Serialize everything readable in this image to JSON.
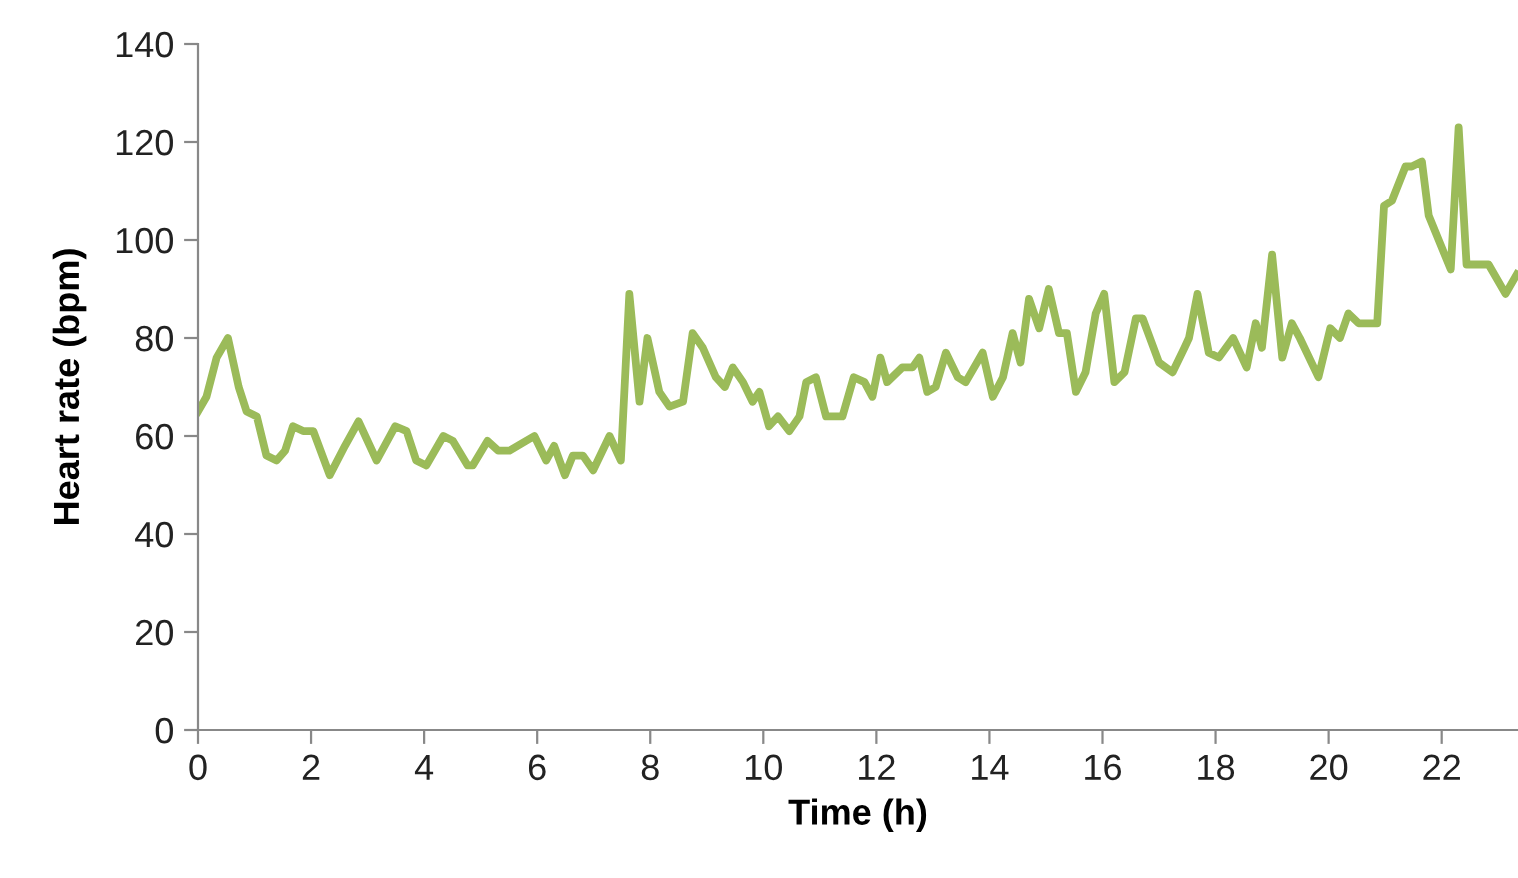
{
  "chart_data": {
    "type": "line",
    "xlabel": "Time (h)",
    "ylabel": "Heart rate (bpm)",
    "xlim": [
      0,
      23.35
    ],
    "xticks": [
      0,
      2,
      4,
      6,
      8,
      10,
      12,
      14,
      16,
      18,
      20,
      22
    ],
    "ylim": [
      0,
      140
    ],
    "yticks": [
      0,
      20,
      40,
      60,
      80,
      100,
      120,
      140
    ],
    "grid": false,
    "legend": false,
    "marker": "none",
    "line_style": "solid",
    "series": [
      {
        "color": "#9bbb59",
        "x": [
          0.0,
          0.15,
          0.33,
          0.53,
          0.72,
          0.86,
          1.04,
          1.21,
          1.39,
          1.54,
          1.68,
          1.86,
          2.04,
          2.33,
          2.6,
          2.84,
          3.16,
          3.49,
          3.69,
          3.86,
          4.04,
          4.34,
          4.51,
          4.77,
          4.86,
          5.12,
          5.31,
          5.51,
          5.95,
          6.16,
          6.3,
          6.49,
          6.63,
          6.81,
          6.99,
          7.28,
          7.48,
          7.63,
          7.81,
          7.95,
          8.16,
          8.34,
          8.58,
          8.75,
          8.93,
          9.16,
          9.32,
          9.46,
          9.64,
          9.81,
          9.93,
          10.1,
          10.26,
          10.46,
          10.64,
          10.76,
          10.93,
          11.11,
          11.4,
          11.6,
          11.79,
          11.93,
          12.07,
          12.19,
          12.46,
          12.64,
          12.76,
          12.9,
          13.05,
          13.23,
          13.44,
          13.58,
          13.88,
          14.06,
          14.24,
          14.41,
          14.55,
          14.7,
          14.88,
          15.05,
          15.23,
          15.37,
          15.53,
          15.7,
          15.88,
          16.03,
          16.21,
          16.39,
          16.59,
          16.71,
          17.0,
          17.24,
          17.45,
          17.53,
          17.68,
          17.88,
          18.06,
          18.31,
          18.55,
          18.71,
          18.82,
          19.0,
          19.18,
          19.35,
          19.49,
          19.82,
          20.03,
          20.2,
          20.35,
          20.53,
          20.86,
          20.98,
          21.12,
          21.36,
          21.47,
          21.65,
          21.77,
          22.16,
          22.3,
          22.44,
          22.83,
          23.13,
          23.33
        ],
        "values": [
          65,
          68,
          76,
          80,
          70,
          65,
          64,
          56,
          55,
          57,
          62,
          61,
          61,
          52,
          58,
          63,
          55,
          62,
          61,
          55,
          54,
          60,
          59,
          54,
          54,
          59,
          57,
          57,
          60,
          55,
          58,
          52,
          56,
          56,
          53,
          60,
          55,
          89,
          67,
          80,
          69,
          66,
          67,
          81,
          78,
          72,
          70,
          74,
          71,
          67,
          69,
          62,
          64,
          61,
          64,
          71,
          72,
          64,
          64,
          72,
          71,
          68,
          76,
          71,
          74,
          74,
          76,
          69,
          70,
          77,
          72,
          71,
          77,
          68,
          72,
          81,
          75,
          88,
          82,
          90,
          81,
          81,
          69,
          73,
          85,
          89,
          71,
          73,
          84,
          84,
          75,
          73,
          78,
          80,
          89,
          77,
          76,
          80,
          74,
          83,
          78,
          97,
          76,
          83,
          80,
          72,
          82,
          80,
          85,
          83,
          83,
          107,
          108,
          115,
          115,
          116,
          105,
          94,
          123,
          95,
          95,
          89,
          93
        ]
      }
    ]
  }
}
